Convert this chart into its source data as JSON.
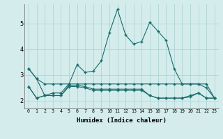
{
  "xlabel": "Humidex (Indice chaleur)",
  "xlim": [
    -0.5,
    23.5
  ],
  "ylim": [
    1.7,
    5.75
  ],
  "yticks": [
    2,
    3,
    4,
    5
  ],
  "xticks": [
    0,
    1,
    2,
    3,
    4,
    5,
    6,
    7,
    8,
    9,
    10,
    11,
    12,
    13,
    14,
    15,
    16,
    17,
    18,
    19,
    20,
    21,
    22,
    23
  ],
  "background_color": "#d4ecec",
  "grid_color": "#a8d0d0",
  "line_color": "#1a6b6b",
  "line1_y": [
    3.25,
    2.85,
    2.65,
    2.65,
    2.65,
    2.65,
    2.65,
    2.65,
    2.65,
    2.65,
    2.65,
    2.65,
    2.65,
    2.65,
    2.65,
    2.65,
    2.65,
    2.65,
    2.65,
    2.65,
    2.65,
    2.65,
    2.65,
    2.1
  ],
  "line2_y": [
    3.25,
    2.85,
    2.2,
    2.3,
    2.3,
    2.65,
    3.4,
    3.1,
    3.15,
    3.55,
    4.65,
    5.55,
    4.55,
    4.2,
    4.3,
    5.05,
    4.7,
    4.35,
    3.25,
    2.65,
    2.65,
    2.65,
    2.5,
    2.1
  ],
  "line3_y": [
    2.55,
    2.1,
    2.2,
    2.2,
    2.2,
    2.6,
    2.6,
    2.55,
    2.45,
    2.45,
    2.45,
    2.45,
    2.45,
    2.45,
    2.45,
    2.2,
    2.1,
    2.1,
    2.1,
    2.1,
    2.2,
    2.3,
    2.1,
    2.1
  ],
  "line4_y": [
    2.55,
    2.1,
    2.2,
    2.2,
    2.2,
    2.55,
    2.55,
    2.5,
    2.4,
    2.4,
    2.4,
    2.4,
    2.4,
    2.4,
    2.4,
    2.2,
    2.1,
    2.1,
    2.1,
    2.1,
    2.15,
    2.3,
    2.1,
    2.1
  ]
}
